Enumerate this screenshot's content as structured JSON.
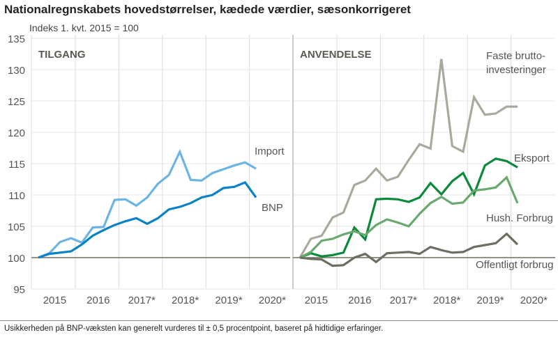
{
  "title": "Nationalregnskabets hovedstørrelser, kædede værdier, sæsonkorrigeret",
  "footer": "Usikkerheden på BNP-væksten kan generelt vurderes til ± 0,5 procentpoint, baseret på hidtidige erfaringer.",
  "chart_data": [
    {
      "type": "line",
      "panel_title": "TILGANG",
      "ylabel": "Indeks 1. kvt. 2015 = 100",
      "ylim": [
        95,
        135
      ],
      "yticks": [
        95,
        100,
        105,
        110,
        115,
        120,
        125,
        130,
        135
      ],
      "x_tick_labels": [
        "2015",
        "2016",
        "2017*",
        "2018*",
        "2019*",
        "2020*"
      ],
      "x": "quarterly, 2015Q1–2020Q1",
      "grid": true,
      "series": [
        {
          "name": "Import",
          "color": "#6cb4e4",
          "values": [
            100,
            100.7,
            102.5,
            103.1,
            102.4,
            104.8,
            104.9,
            109.2,
            109.3,
            108.3,
            109.6,
            111.8,
            113.2,
            116.9,
            112.4,
            112.3,
            113.5,
            114.1,
            114.7,
            115.2,
            114.2
          ]
        },
        {
          "name": "BNP",
          "color": "#0a82c8",
          "values": [
            100,
            100.6,
            100.8,
            101.0,
            102.1,
            103.5,
            104.4,
            105.2,
            105.8,
            106.3,
            105.4,
            106.3,
            107.7,
            108.1,
            108.7,
            109.6,
            110.0,
            111.1,
            111.3,
            112.0,
            109.6
          ]
        }
      ]
    },
    {
      "type": "line",
      "panel_title": "ANVENDELSE",
      "ylim": [
        95,
        135
      ],
      "x_tick_labels": [
        "2015",
        "2016",
        "2017*",
        "2018*",
        "2019*",
        "2020*"
      ],
      "x": "quarterly, 2015Q1–2020Q1",
      "grid": true,
      "series": [
        {
          "name": "Faste brutto- investeringer",
          "color": "#aaa99c",
          "values": [
            100,
            103.0,
            103.5,
            106.4,
            107.2,
            111.6,
            112.3,
            114.2,
            112.3,
            112.9,
            115.6,
            118.1,
            117.4,
            131.7,
            117.8,
            116.9,
            125.6,
            122.8,
            123.0,
            124.1,
            124.1
          ]
        },
        {
          "name": "Eksport",
          "color": "#0a8a3a",
          "values": [
            100,
            100.7,
            100.2,
            100.4,
            100.8,
            104.8,
            102.9,
            109.3,
            109.4,
            109.3,
            108.9,
            109.6,
            111.9,
            110.1,
            112.2,
            113.5,
            110.1,
            114.7,
            115.8,
            115.4,
            114.4
          ]
        },
        {
          "name": "Hush. Forbrug",
          "color": "#6aa96e",
          "values": [
            100,
            100.9,
            102.7,
            103.0,
            103.7,
            104.2,
            103.6,
            105.2,
            106.1,
            105.6,
            105.0,
            107.0,
            108.7,
            109.7,
            108.6,
            108.8,
            110.7,
            110.9,
            111.2,
            112.8,
            108.7
          ]
        },
        {
          "name": "Offentligt forbrug",
          "color": "#6e6e60",
          "values": [
            100,
            99.8,
            99.7,
            98.7,
            98.8,
            100.0,
            100.6,
            99.3,
            100.7,
            100.8,
            100.9,
            100.6,
            101.7,
            101.2,
            100.8,
            100.9,
            101.7,
            102.0,
            102.3,
            103.8,
            102.1
          ]
        }
      ]
    }
  ]
}
